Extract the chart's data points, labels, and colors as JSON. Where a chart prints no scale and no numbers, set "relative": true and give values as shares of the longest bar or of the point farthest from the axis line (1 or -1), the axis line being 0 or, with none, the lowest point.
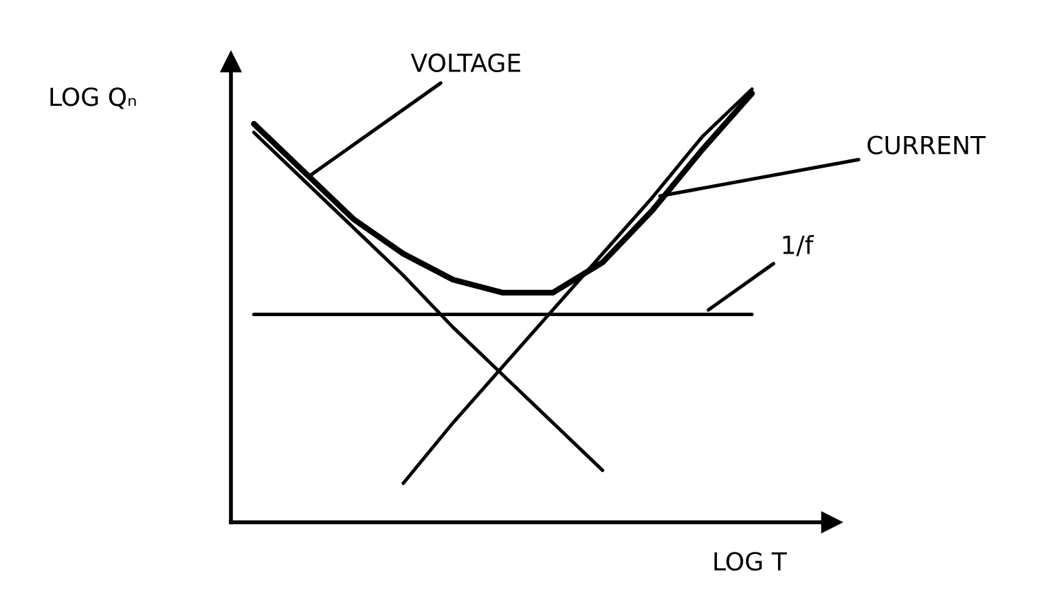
{
  "chart_data": {
    "type": "line",
    "relative": true,
    "xlabel": "LOG T",
    "ylabel": "LOG Qₙ",
    "categories": [
      null,
      null,
      null,
      null,
      null,
      null,
      null,
      null,
      null,
      null,
      null
    ],
    "series": [
      {
        "name": "VOLTAGE",
        "color": "#000000",
        "values": [
          0.9,
          0.79,
          0.68,
          0.57,
          0.45,
          0.34,
          0.23,
          0.12,
          null,
          null,
          null
        ]
      },
      {
        "name": "CURRENT",
        "color": "#000000",
        "values": [
          null,
          null,
          null,
          0.09,
          0.23,
          0.36,
          0.49,
          0.62,
          0.75,
          0.89,
          1.0
        ]
      },
      {
        "name": "1/f",
        "color": "#000000",
        "values": [
          0.48,
          0.48,
          0.48,
          0.48,
          0.48,
          0.48,
          0.48,
          0.48,
          0.48,
          0.48,
          0.48
        ]
      },
      {
        "color": "#000000",
        "values": [
          0.92,
          0.81,
          0.7,
          0.62,
          0.56,
          0.53,
          0.53,
          0.6,
          0.72,
          0.86,
          0.99
        ]
      }
    ],
    "legend": false,
    "marker": "none",
    "line_style": "solid"
  }
}
